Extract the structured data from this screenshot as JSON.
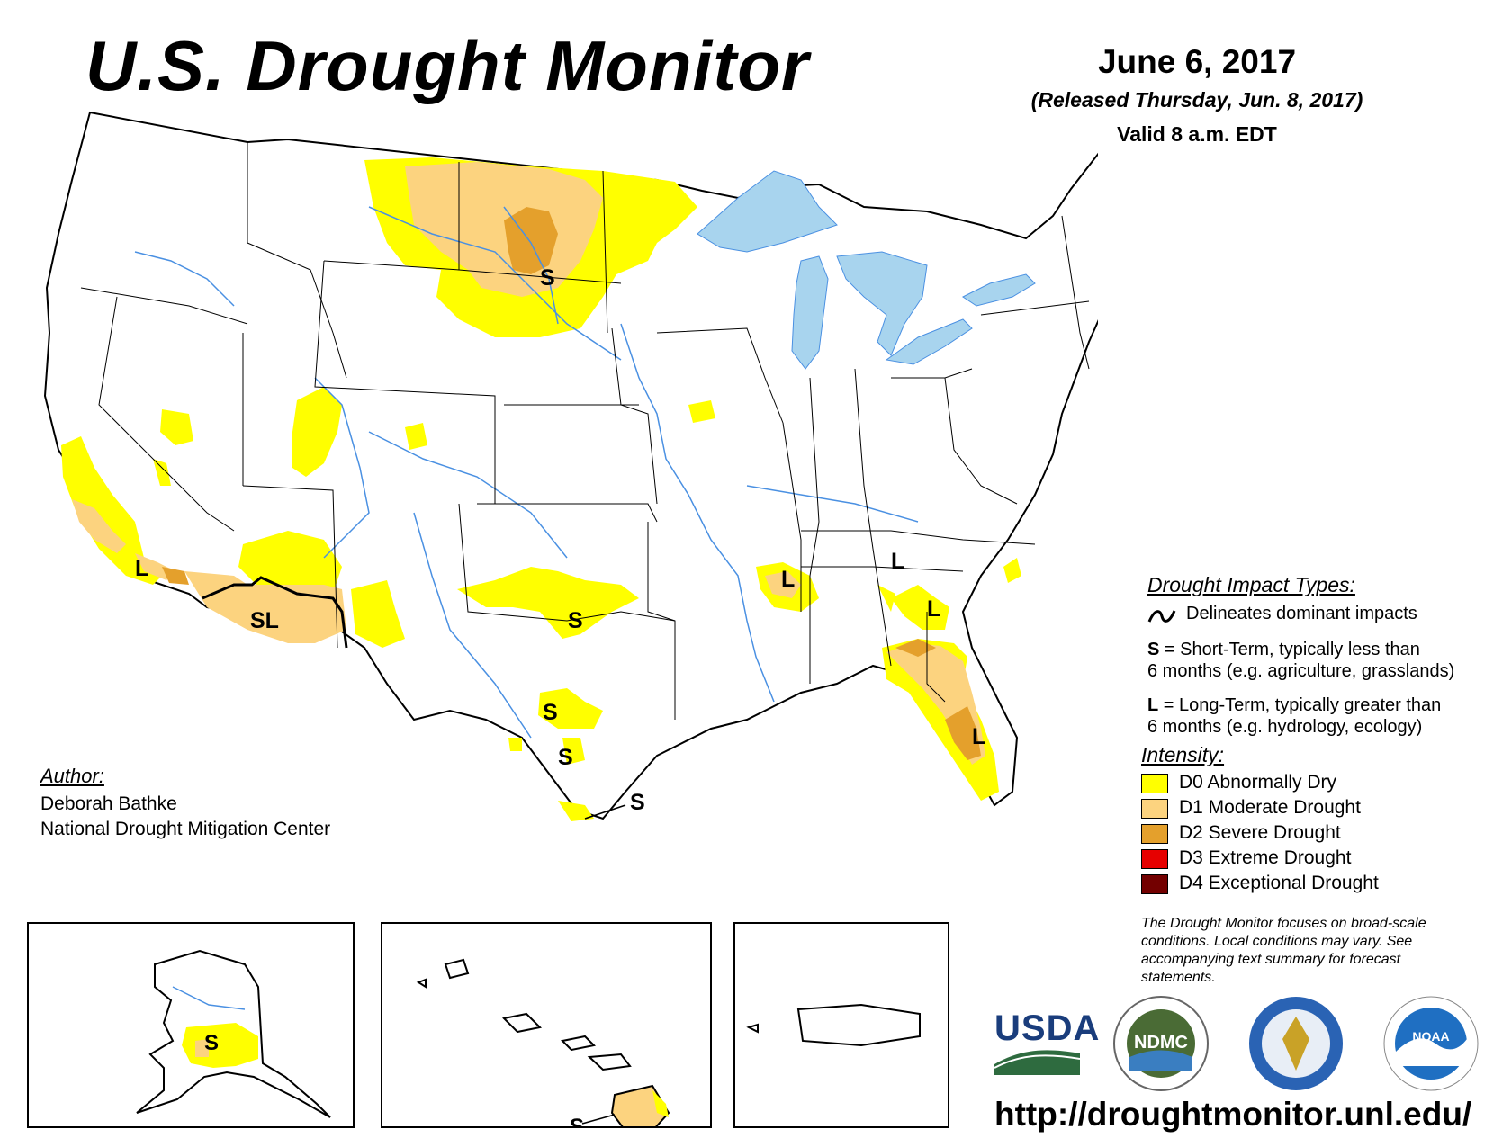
{
  "header": {
    "title": "U.S. Drought Monitor",
    "date": "June 6, 2017",
    "released": "(Released Thursday, Jun. 8, 2017)",
    "valid": "Valid 8 a.m. EDT"
  },
  "map_labels": {
    "south_dakota": "S",
    "california": "L",
    "arizona": "SL",
    "texas_north": "S",
    "texas_central": "S",
    "texas_south": "S",
    "texas_coast": "S",
    "mississippi": "L",
    "georgia_north": "L",
    "georgia_south": "L",
    "florida": "L",
    "alaska": "S",
    "hawaii": "S"
  },
  "impact_types": {
    "heading": "Drought Impact Types:",
    "line_text": "Delineates dominant impacts",
    "short_key": "S",
    "short_line1": " = Short-Term, typically less than",
    "short_line2": "6 months (e.g. agriculture, grasslands)",
    "long_key": "L",
    "long_line1": " = Long-Term, typically greater than",
    "long_line2": "6 months (e.g. hydrology, ecology)"
  },
  "intensity": {
    "heading": "Intensity:",
    "categories": [
      {
        "label": "D0 Abnormally Dry",
        "color": "#ffff00"
      },
      {
        "label": "D1 Moderate Drought",
        "color": "#fcd37f"
      },
      {
        "label": "D2 Severe Drought",
        "color": "#e4a02c"
      },
      {
        "label": "D3 Extreme Drought",
        "color": "#e60000"
      },
      {
        "label": "D4 Exceptional Drought",
        "color": "#730000"
      }
    ]
  },
  "disclaimer": "The Drought Monitor focuses on broad-scale conditions. Local conditions may vary. See accompanying text summary for forecast statements.",
  "author": {
    "heading": "Author:",
    "name": "Deborah Bathke",
    "org": "National Drought Mitigation Center"
  },
  "logos": {
    "usda": "USDA",
    "ndmc": "NDMC",
    "noaa": "NOAA"
  },
  "url": "http://droughtmonitor.unl.edu/",
  "colors": {
    "water": "#a8d4ee",
    "river": "#4a90e2",
    "d0": "#ffff00",
    "d1": "#fcd37f",
    "d2": "#e4a02c"
  }
}
